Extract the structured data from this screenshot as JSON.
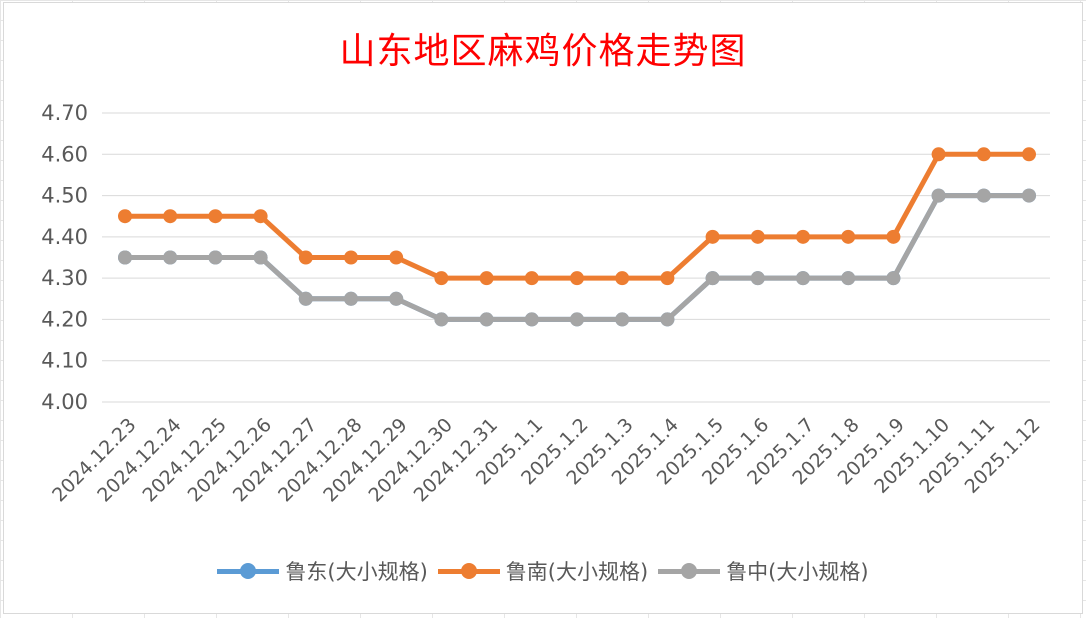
{
  "chart_data": {
    "type": "line",
    "title": "山东地区麻鸡价格走势图",
    "xlabel": "",
    "ylabel": "",
    "categories": [
      "2024.12.23",
      "2024.12.24",
      "2024.12.25",
      "2024.12.26",
      "2024.12.27",
      "2024.12.28",
      "2024.12.29",
      "2024.12.30",
      "2024.12.31",
      "2025.1.1",
      "2025.1.2",
      "2025.1.3",
      "2025.1.4",
      "2025.1.5",
      "2025.1.6",
      "2025.1.7",
      "2025.1.8",
      "2025.1.9",
      "2025.1.10",
      "2025.1.11",
      "2025.1.12"
    ],
    "ylim": [
      4.0,
      4.7
    ],
    "yticks": [
      "4.00",
      "4.10",
      "4.20",
      "4.30",
      "4.40",
      "4.50",
      "4.60",
      "4.70"
    ],
    "grid": true,
    "legend_position": "bottom",
    "series": [
      {
        "name": "鲁东(大小规格)",
        "color": "#5b9bd5",
        "values": [
          4.35,
          4.35,
          4.35,
          4.35,
          4.25,
          4.25,
          4.25,
          4.2,
          4.2,
          4.2,
          4.2,
          4.2,
          4.2,
          4.3,
          4.3,
          4.3,
          4.3,
          4.3,
          4.5,
          4.5,
          4.5
        ]
      },
      {
        "name": "鲁南(大小规格)",
        "color": "#ed7d31",
        "values": [
          4.45,
          4.45,
          4.45,
          4.45,
          4.35,
          4.35,
          4.35,
          4.3,
          4.3,
          4.3,
          4.3,
          4.3,
          4.3,
          4.4,
          4.4,
          4.4,
          4.4,
          4.4,
          4.6,
          4.6,
          4.6
        ]
      },
      {
        "name": "鲁中(大小规格)",
        "color": "#a5a5a5",
        "values": [
          4.35,
          4.35,
          4.35,
          4.35,
          4.25,
          4.25,
          4.25,
          4.2,
          4.2,
          4.2,
          4.2,
          4.2,
          4.2,
          4.3,
          4.3,
          4.3,
          4.3,
          4.3,
          4.5,
          4.5,
          4.5
        ]
      }
    ]
  }
}
